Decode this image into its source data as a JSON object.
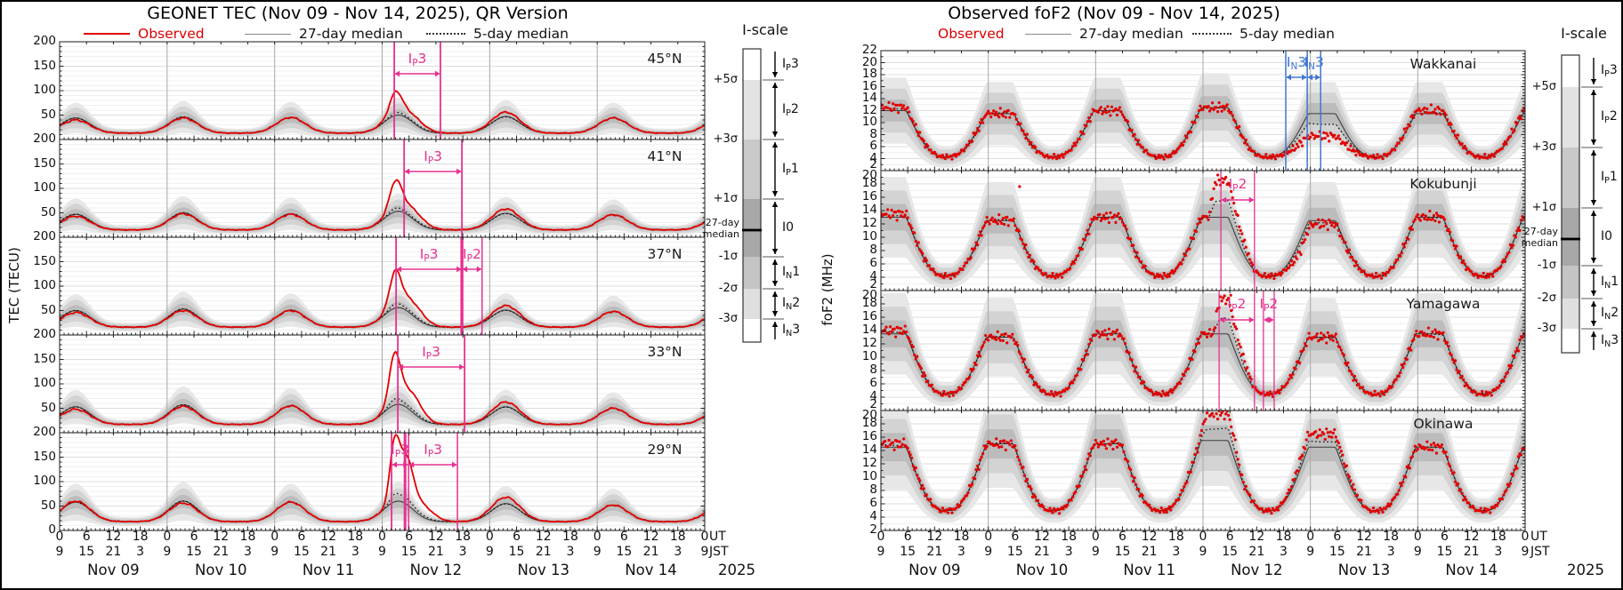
{
  "meta": {
    "year": "2025",
    "ut": "UT",
    "jst": "JST"
  },
  "iscale": {
    "title": "I-scale",
    "sigma_labels": [
      "+5σ",
      "+3σ",
      "+1σ",
      "-1σ",
      "-2σ",
      "-3σ"
    ],
    "median_label": [
      "27-day",
      "median"
    ],
    "zones": [
      [
        "I",
        "P",
        "3"
      ],
      [
        "I",
        "P",
        "2"
      ],
      [
        "I",
        "P",
        "1"
      ],
      [
        "I0",
        "",
        ""
      ],
      [
        "I",
        "N",
        "1"
      ],
      [
        "I",
        "N",
        "2"
      ],
      [
        "I",
        "N",
        "3"
      ]
    ]
  },
  "chart_data": [
    {
      "id": "tec",
      "type": "line",
      "title": "GEONET TEC (Nov 09 - Nov 14, 2025), QR Version",
      "ylabel": "TEC (TECU)",
      "observed_style": "line",
      "nudge_boundary_labels": false,
      "peak_ut": 3.6,
      "legend": [
        {
          "label": "Observed",
          "swatch": "red-line",
          "color": "#d90000"
        },
        {
          "label": "27-day median",
          "swatch": "gray-line",
          "color": "#111111"
        },
        {
          "label": "5-day median",
          "swatch": "dotted-line",
          "color": "#111111"
        }
      ],
      "days": [
        "Nov 09",
        "Nov 10",
        "Nov 11",
        "Nov 12",
        "Nov 13",
        "Nov 14"
      ],
      "ut_ticks": [
        "0",
        "6",
        "12",
        "18"
      ],
      "jst_ticks": [
        "9",
        "15",
        "21",
        "3"
      ],
      "ut_end": "0",
      "jst_end": "9",
      "annotation_color": "#e6318f",
      "panels": [
        {
          "label": "45°N",
          "ylim": [
            0,
            200
          ],
          "ytick_labels": [
            200,
            150,
            100,
            50
          ],
          "night": 13,
          "median_day_peaks": [
            44,
            46,
            45,
            50,
            47,
            44
          ],
          "observed_day_peaks": [
            40,
            44,
            45,
            52,
            56,
            44
          ],
          "spikes": [
            {
              "t0": 75.0,
              "A": 42,
              "w": 1.3
            },
            {
              "t0": 78.8,
              "A": 15,
              "w": 2.6
            }
          ],
          "annotations": [
            {
              "parts": [
                "I",
                "P",
                "3"
              ],
              "from": 74.7,
              "to": 85.0,
              "color": "#e6318f",
              "lines": [
                {
                  "t": 74.7,
                  "w": 1.8
                },
                {
                  "t": 85.0,
                  "w": 1.8
                }
              ],
              "ly": 24,
              "ay": 36
            }
          ]
        },
        {
          "label": "41°N",
          "ylim": [
            0,
            200
          ],
          "ytick_labels": [
            200,
            150,
            100,
            50
          ],
          "night": 15,
          "median_day_peaks": [
            47,
            50,
            48,
            53,
            49,
            46
          ],
          "observed_day_peaks": [
            43,
            48,
            47,
            55,
            58,
            46
          ],
          "spikes": [
            {
              "t0": 75.0,
              "A": 56,
              "w": 1.3
            },
            {
              "t0": 78.8,
              "A": 20,
              "w": 2.6
            }
          ],
          "annotations": [
            {
              "parts": [
                "I",
                "P",
                "3"
              ],
              "from": 76.9,
              "to": 89.8,
              "color": "#e6318f",
              "lines": [
                {
                  "t": 76.9,
                  "w": 1.8
                },
                {
                  "t": 89.8,
                  "w": 1.8
                }
              ],
              "ly": 24,
              "ay": 36
            }
          ]
        },
        {
          "label": "37°N",
          "ylim": [
            0,
            200
          ],
          "ytick_labels": [
            200,
            150,
            100,
            50
          ],
          "night": 16,
          "median_day_peaks": [
            50,
            53,
            51,
            56,
            51,
            48
          ],
          "observed_day_peaks": [
            46,
            50,
            50,
            57,
            60,
            48
          ],
          "spikes": [
            {
              "t0": 74.9,
              "A": 66,
              "w": 1.25
            },
            {
              "t0": 78.6,
              "A": 28,
              "w": 2.6
            }
          ],
          "annotations": [
            {
              "parts": [
                "I",
                "P",
                "3"
              ],
              "from": 75.1,
              "to": 89.8,
              "color": "#e6318f",
              "lines": [
                {
                  "t": 75.1,
                  "w": 1.8
                },
                {
                  "t": 89.8,
                  "w": 3.4
                }
              ],
              "ly": 24,
              "ay": 36
            },
            {
              "parts": [
                "I",
                "P",
                "2"
              ],
              "from": 89.8,
              "to": 94.3,
              "color": "#e6318f",
              "lines": [
                {
                  "t": 94.3,
                  "w": 1.5
                }
              ],
              "ly": 24,
              "ay": 36
            }
          ]
        },
        {
          "label": "33°N",
          "ylim": [
            0,
            200
          ],
          "ytick_labels": [
            200,
            150,
            100,
            50
          ],
          "night": 17,
          "median_day_peaks": [
            53,
            57,
            55,
            58,
            53,
            50
          ],
          "observed_day_peaks": [
            48,
            54,
            55,
            58,
            63,
            50
          ],
          "spikes": [
            {
              "t0": 74.8,
              "A": 95,
              "w": 1.2
            },
            {
              "t0": 78.4,
              "A": 40,
              "w": 2.4
            }
          ],
          "annotations": [
            {
              "parts": [
                "I",
                "P",
                "3"
              ],
              "from": 75.5,
              "to": 90.4,
              "color": "#e6318f",
              "lines": [
                {
                  "t": 75.5,
                  "w": 1.8
                },
                {
                  "t": 90.4,
                  "w": 1.8
                }
              ],
              "ly": 24,
              "ay": 36
            }
          ]
        },
        {
          "label": "29°N",
          "ylim": [
            0,
            200
          ],
          "ytick_labels": [
            200,
            150,
            100,
            50,
            0
          ],
          "night": 18,
          "median_day_peaks": [
            58,
            60,
            58,
            60,
            55,
            52
          ],
          "observed_day_peaks": [
            60,
            56,
            58,
            60,
            68,
            52
          ],
          "spikes": [
            {
              "t0": 74.7,
              "A": 105,
              "w": 1.0
            },
            {
              "t0": 77.2,
              "A": 92,
              "w": 1.6
            },
            {
              "t0": 81,
              "A": 25,
              "w": 2.5
            }
          ],
          "annotations": [
            {
              "parts": [
                "I",
                "P",
                "3"
              ],
              "from": 74.1,
              "to": 77.9,
              "color": "#e6318f",
              "lines": [
                {
                  "t": 74.1,
                  "w": 1.8
                },
                {
                  "t": 77.1,
                  "w": 3.0
                },
                {
                  "t": 77.9,
                  "w": 1.5
                }
              ],
              "ly": 24,
              "ay": 36
            },
            {
              "parts": [
                "I",
                "P",
                "3"
              ],
              "from": 77.9,
              "to": 88.8,
              "color": "#e6318f",
              "lines": [
                {
                  "t": 88.8,
                  "w": 1.5
                }
              ],
              "ly": 24,
              "ay": 36
            }
          ]
        }
      ]
    },
    {
      "id": "fof2",
      "type": "scatter",
      "title": "Observed foF2 (Nov 09 - Nov 14, 2025)",
      "ylabel": "foF2 (MHz)",
      "observed_style": "dots",
      "nudge_boundary_labels": true,
      "peak_ut": 2.6,
      "legend": [
        {
          "label": "Observed",
          "swatch": "none",
          "color": "#d90000"
        },
        {
          "label": "27-day median",
          "swatch": "gray-line",
          "color": "#111111"
        },
        {
          "label": "5-day median",
          "swatch": "dotted-line",
          "color": "#111111"
        }
      ],
      "days": [
        "Nov 09",
        "Nov 10",
        "Nov 11",
        "Nov 12",
        "Nov 13",
        "Nov 14"
      ],
      "ut_ticks": [
        "0",
        "6",
        "12",
        "18"
      ],
      "jst_ticks": [
        "9",
        "15",
        "21",
        "3"
      ],
      "ut_end": "0",
      "jst_end": "9",
      "annotation_color": "#3f76d0",
      "panels": [
        {
          "label": "Wakkanai",
          "ylim": [
            2,
            22
          ],
          "ytick_labels": [
            22,
            20,
            18,
            16,
            14,
            12,
            10,
            8,
            6,
            4,
            2
          ],
          "night": 4.3,
          "median_day_peaks": [
            12,
            11.5,
            12,
            12.5,
            11.5,
            11.5
          ],
          "observed_day_peaks": [
            12.6,
            11.5,
            12,
            12.5,
            11.5,
            12
          ],
          "storms": [
            {
              "type": "depress",
              "from": 80,
              "full_from": 88,
              "full_to": 106,
              "to": 118,
              "amount": 0.52
            }
          ],
          "annotations": [
            {
              "parts": [
                "I",
                "N",
                "3"
              ],
              "from": 90.5,
              "to": 95.3,
              "color": "#3f76d0",
              "lines": [
                {
                  "t": 90.5,
                  "w": 1.5
                },
                {
                  "t": 95.3,
                  "w": 1.5
                }
              ],
              "ly": 18,
              "ay": 30
            },
            {
              "parts": [
                "I",
                "N",
                "3"
              ],
              "from": 95.3,
              "to": 98.3,
              "color": "#3f76d0",
              "lines": [
                {
                  "t": 98.3,
                  "w": 1.5
                }
              ],
              "ly": 18,
              "ay": 30
            }
          ]
        },
        {
          "label": "Kokubunji",
          "ylim": [
            2,
            20
          ],
          "ytick_labels": [
            20,
            18,
            16,
            14,
            12,
            10,
            8,
            6,
            4,
            2
          ],
          "night": 4.2,
          "median_day_peaks": [
            13,
            12.5,
            13,
            13,
            12.5,
            13
          ],
          "observed_day_peaks": [
            13.5,
            12.5,
            13,
            13,
            12,
            13
          ],
          "storms": [
            {
              "type": "boost",
              "from": 73,
              "full_from": 75,
              "full_to": 82,
              "to": 84,
              "amount": 5.5
            },
            {
              "type": "depress",
              "from": 84,
              "full_from": 87,
              "full_to": 93,
              "to": 97,
              "amount": 0.3
            }
          ],
          "outliers": [
            {
              "t": 31,
              "v": 17.6
            }
          ],
          "annotations": [
            {
              "parts": [
                "I",
                "P",
                "2"
              ],
              "from": 76.0,
              "to": 83.5,
              "color": "#e6318f",
              "lines": [
                {
                  "t": 76.0,
                  "w": 1.3
                },
                {
                  "t": 83.5,
                  "w": 1.3
                }
              ],
              "ly": 20,
              "ay": 33
            }
          ]
        },
        {
          "label": "Yamagawa",
          "ylim": [
            2,
            20
          ],
          "ytick_labels": [
            20,
            18,
            16,
            14,
            12,
            10,
            8,
            6,
            4,
            2
          ],
          "night": 4.5,
          "median_day_peaks": [
            13.5,
            13,
            13.5,
            13.5,
            13,
            13.5
          ],
          "observed_day_peaks": [
            14,
            13,
            13.5,
            13.5,
            13,
            13.5
          ],
          "storms": [
            {
              "type": "boost",
              "from": 74,
              "full_from": 76,
              "full_to": 82,
              "to": 84,
              "amount": 5.2
            },
            {
              "type": "boost",
              "from": 84.5,
              "full_from": 85.5,
              "full_to": 88,
              "to": 89,
              "amount": 3.0
            }
          ],
          "outliers": [
            {
              "t": 78.2,
              "v": 19.3
            }
          ],
          "annotations": [
            {
              "parts": [
                "I",
                "P",
                "2"
              ],
              "from": 75.6,
              "to": 83.5,
              "color": "#e6318f",
              "lines": [
                {
                  "t": 75.6,
                  "w": 1.3
                },
                {
                  "t": 83.5,
                  "w": 1.3
                }
              ],
              "ly": 20,
              "ay": 33
            },
            {
              "parts": [
                "I",
                "P",
                "2"
              ],
              "from": 85.5,
              "to": 87.9,
              "color": "#e6318f",
              "lines": [
                {
                  "t": 85.5,
                  "w": 1.3
                },
                {
                  "t": 87.9,
                  "w": 1.3
                }
              ],
              "ly": 20,
              "ay": 33
            }
          ]
        },
        {
          "label": "Okinawa",
          "ylim": [
            2,
            20
          ],
          "ytick_labels": [
            20,
            18,
            16,
            14,
            12,
            10,
            8,
            6,
            4,
            2
          ],
          "night": 5,
          "median_day_peaks": [
            14.5,
            15,
            15,
            15.5,
            14.5,
            14.5
          ],
          "observed_day_peaks": [
            15,
            15,
            15,
            16,
            16.5,
            14.5
          ],
          "storms": [
            {
              "type": "boost",
              "from": 71,
              "full_from": 73,
              "full_to": 79,
              "to": 81,
              "amount": 3.5
            }
          ],
          "annotations": []
        }
      ]
    }
  ]
}
